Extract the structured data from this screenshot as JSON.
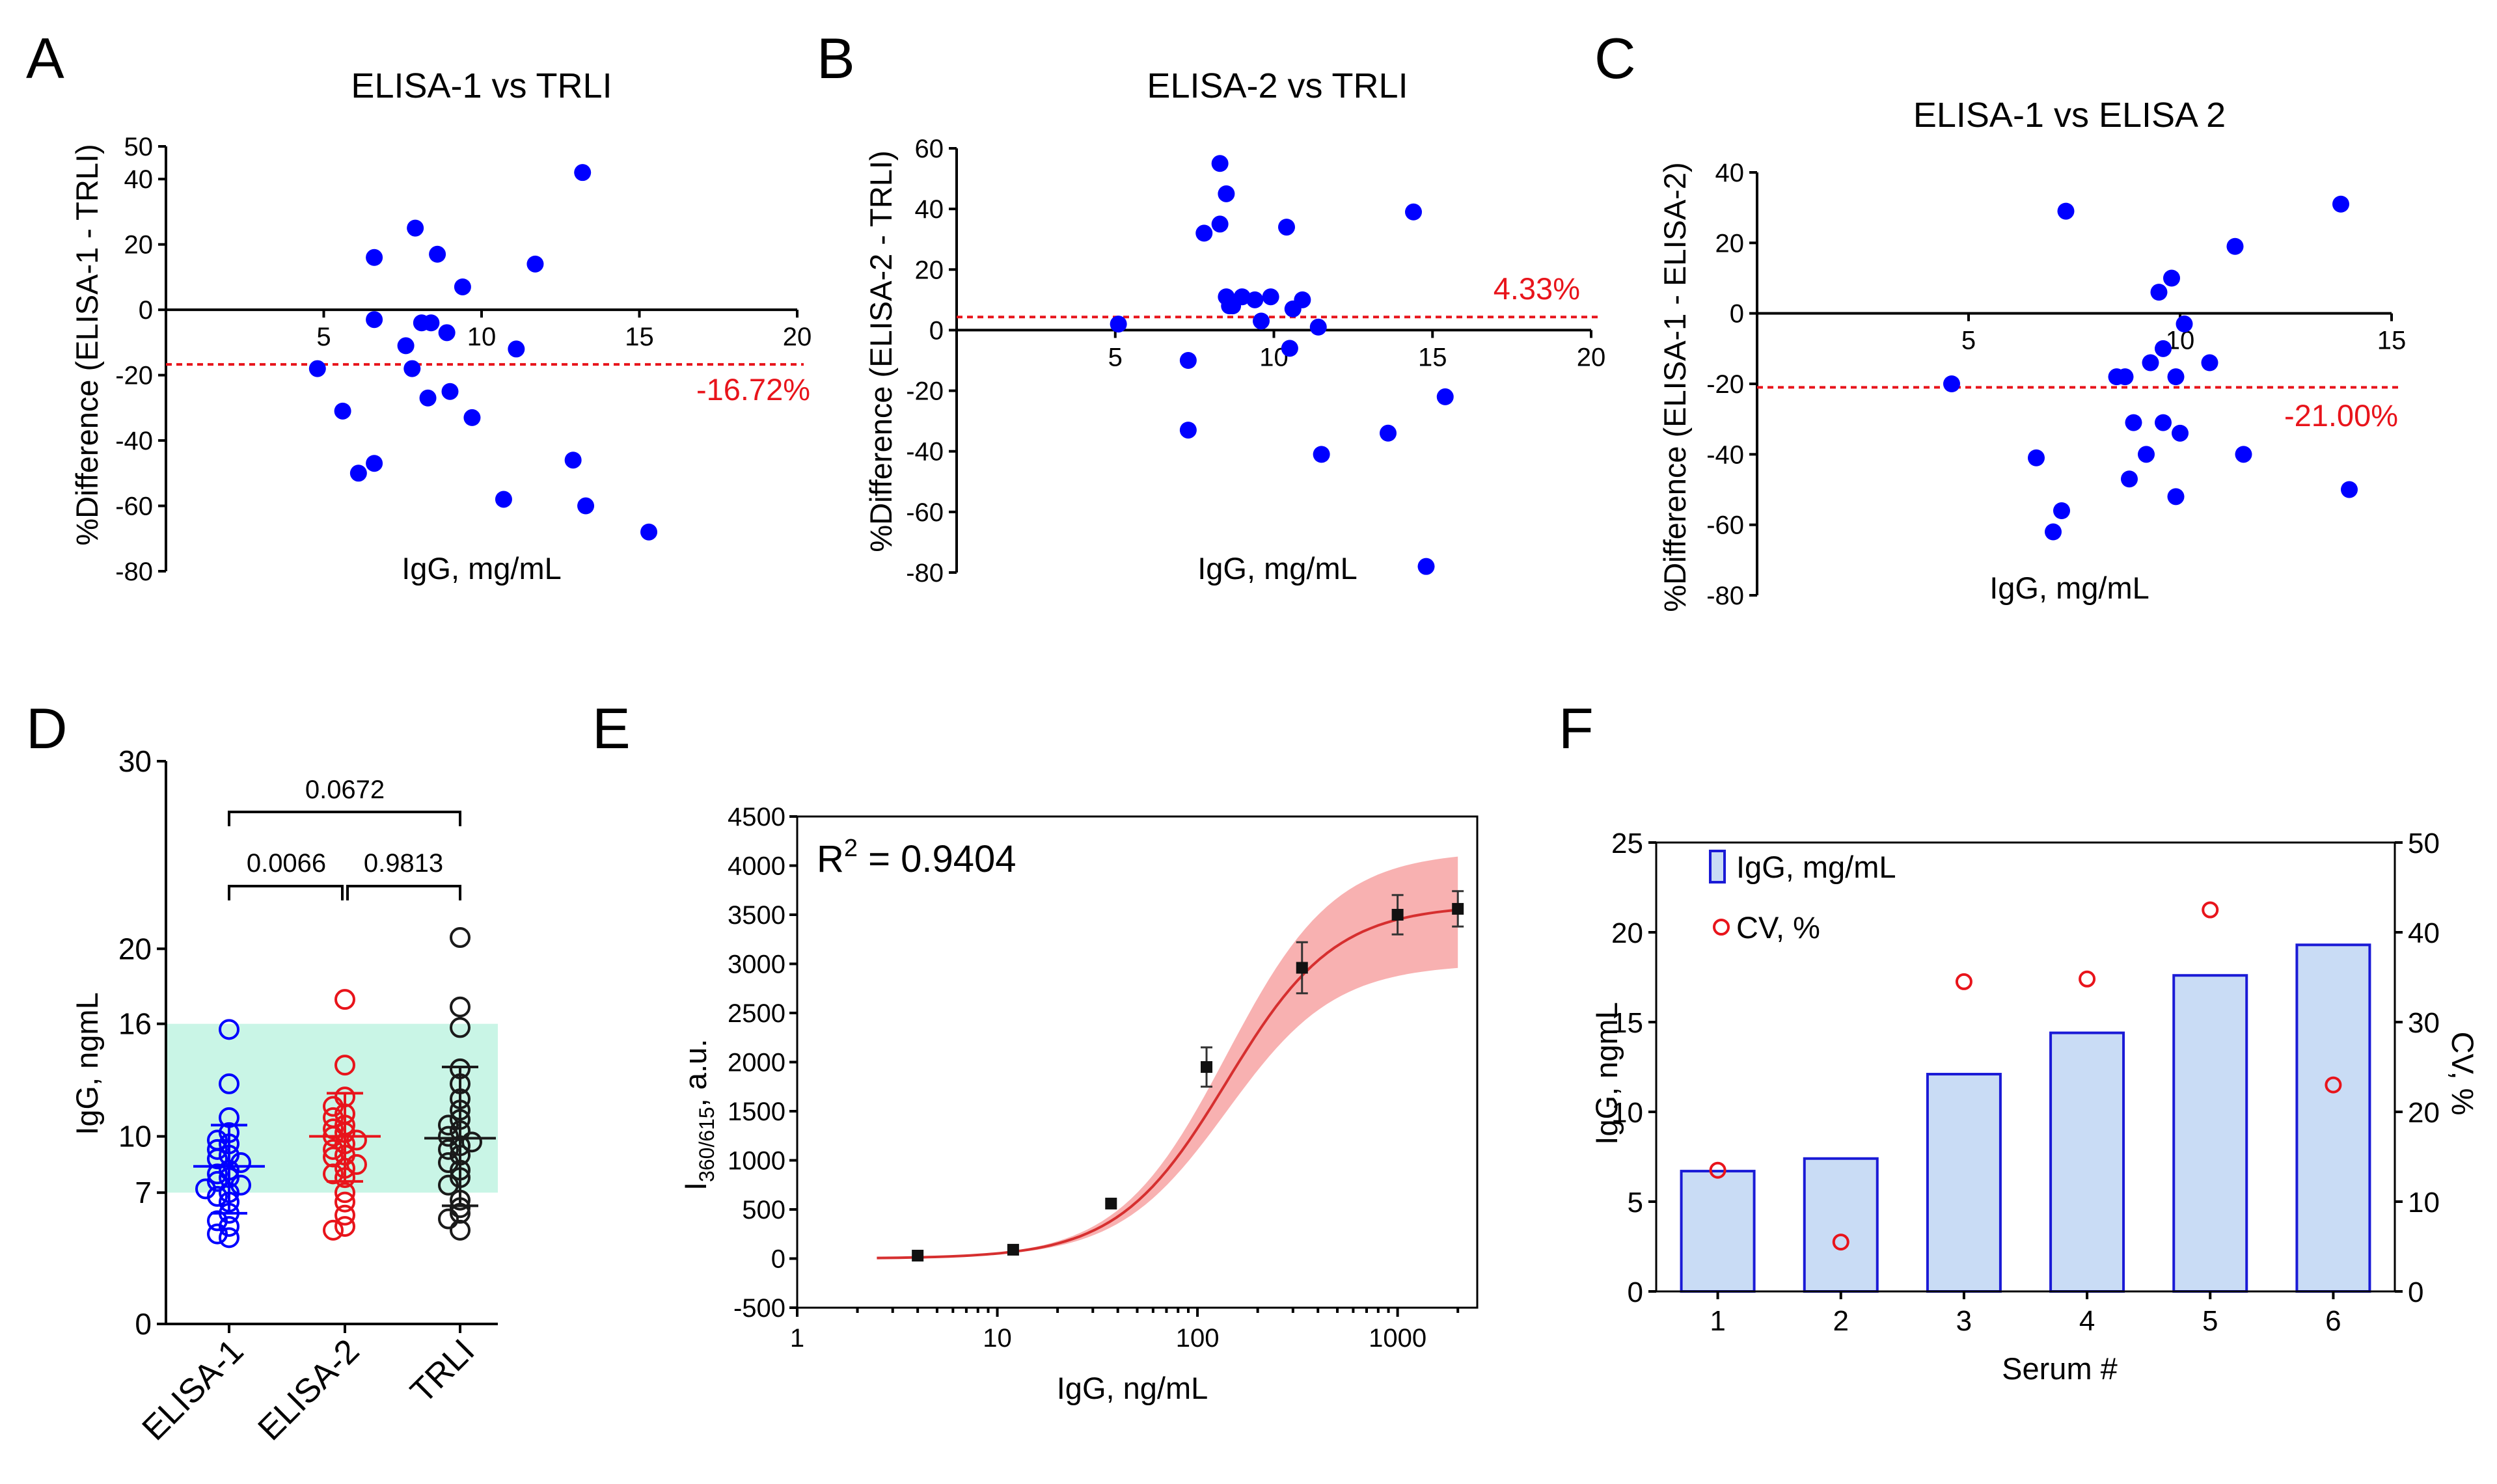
{
  "panels": {
    "A": {
      "letter": "A",
      "title": "ELISA-1 vs TRLI",
      "xlabel": "IgG, mg/mL",
      "ylabel": "%Difference (ELISA-1 - TRLI)",
      "bias_label": "-16.72%"
    },
    "B": {
      "letter": "B",
      "title": "ELISA-2 vs TRLI",
      "xlabel": "IgG, mg/mL",
      "ylabel": "%Difference (ELISA-2 - TRLI)",
      "bias_label": "4.33%"
    },
    "C": {
      "letter": "C",
      "title": "ELISA-1 vs ELISA 2",
      "xlabel": "IgG, mg/mL",
      "ylabel": "%Difference (ELISA-1 - ELISA-2)",
      "bias_label": "-21.00%"
    },
    "D": {
      "letter": "D",
      "ylabel": "IgG, ngmL",
      "p_12": "0.0066",
      "p_23": "0.9813",
      "p_13": "0.0672"
    },
    "E": {
      "letter": "E",
      "r2_prefix": "R",
      "r2_sup": "2",
      "r2_value": " = 0.9404",
      "ylabel_main": "I",
      "ylabel_sub": "360/615",
      "ylabel_tail": ", a.u.",
      "xlabel": "IgG, ng/mL"
    },
    "F": {
      "letter": "F",
      "ylabel_left": "IgG, ngmL",
      "ylabel_right": "CV, %",
      "xlabel": "Serum #",
      "legend_bar": "IgG, mg/mL",
      "legend_circle": "CV, %"
    }
  },
  "colors": {
    "blue": "#0000ff",
    "red": "#e8141b",
    "green_band": "#c9f5e6",
    "bar_fill": "#c9dcf5",
    "bar_edge": "#1a1ad6",
    "band_fill": "#f7a3a3"
  },
  "chart_data": [
    {
      "panel": "A",
      "type": "scatter",
      "title": "ELISA-1 vs TRLI",
      "xlabel": "IgG, mg/mL",
      "ylabel": "%Difference (ELISA-1 - TRLI)",
      "xlim": [
        0,
        20
      ],
      "ylim": [
        -80,
        50
      ],
      "xticks": [
        5,
        10,
        15,
        20
      ],
      "yticks": [
        50,
        40,
        20,
        0,
        -20,
        -40,
        -60,
        -80
      ],
      "bias": -16.72,
      "points": [
        [
          4.8,
          -18
        ],
        [
          5.6,
          -31
        ],
        [
          6.1,
          -50
        ],
        [
          6.6,
          16
        ],
        [
          6.6,
          -3
        ],
        [
          6.6,
          -47
        ],
        [
          7.9,
          25
        ],
        [
          7.6,
          -11
        ],
        [
          7.8,
          -18
        ],
        [
          8.1,
          -4
        ],
        [
          8.4,
          -4
        ],
        [
          8.3,
          -27
        ],
        [
          8.6,
          17
        ],
        [
          8.9,
          -7
        ],
        [
          9.0,
          -25
        ],
        [
          9.4,
          7
        ],
        [
          9.7,
          -33
        ],
        [
          10.7,
          -58
        ],
        [
          11.1,
          -12
        ],
        [
          11.7,
          14
        ],
        [
          12.9,
          -46
        ],
        [
          13.2,
          42
        ],
        [
          13.3,
          -60
        ],
        [
          15.3,
          -68
        ]
      ]
    },
    {
      "panel": "B",
      "type": "scatter",
      "title": "ELISA-2 vs TRLI",
      "xlabel": "IgG, mg/mL",
      "ylabel": "%Difference (ELISA-2 - TRLI)",
      "xlim": [
        0,
        20
      ],
      "ylim": [
        -80,
        60
      ],
      "xticks": [
        5,
        10,
        15,
        20
      ],
      "yticks": [
        60,
        40,
        20,
        0,
        -20,
        -40,
        -60,
        -80
      ],
      "bias": 4.33,
      "points": [
        [
          5.1,
          2
        ],
        [
          7.3,
          -10
        ],
        [
          7.3,
          -33
        ],
        [
          7.8,
          32
        ],
        [
          8.3,
          55
        ],
        [
          8.3,
          35
        ],
        [
          8.5,
          45
        ],
        [
          8.5,
          11
        ],
        [
          8.6,
          8
        ],
        [
          8.7,
          8
        ],
        [
          9.0,
          11
        ],
        [
          9.4,
          10
        ],
        [
          9.6,
          3
        ],
        [
          9.9,
          11
        ],
        [
          10.4,
          34
        ],
        [
          10.5,
          -6
        ],
        [
          10.6,
          7
        ],
        [
          10.9,
          10
        ],
        [
          11.4,
          1
        ],
        [
          11.5,
          -41
        ],
        [
          13.6,
          -34
        ],
        [
          14.4,
          39
        ],
        [
          14.8,
          -78
        ],
        [
          15.4,
          -22
        ]
      ]
    },
    {
      "panel": "C",
      "type": "scatter",
      "title": "ELISA-1 vs ELISA 2",
      "xlabel": "IgG, mg/mL",
      "ylabel": "%Difference (ELISA-1 - ELISA-2)",
      "xlim": [
        0,
        15
      ],
      "ylim": [
        -80,
        40
      ],
      "xticks": [
        5,
        10,
        15
      ],
      "yticks": [
        40,
        20,
        0,
        -20,
        -40,
        -60,
        -80
      ],
      "bias": -21.0,
      "points": [
        [
          4.6,
          -20
        ],
        [
          6.6,
          -41
        ],
        [
          7.0,
          -62
        ],
        [
          7.2,
          -56
        ],
        [
          7.3,
          29
        ],
        [
          8.5,
          -18
        ],
        [
          8.7,
          -18
        ],
        [
          8.8,
          -47
        ],
        [
          8.9,
          -31
        ],
        [
          9.2,
          -40
        ],
        [
          9.3,
          -14
        ],
        [
          9.5,
          6
        ],
        [
          9.6,
          -31
        ],
        [
          9.6,
          -10
        ],
        [
          9.8,
          10
        ],
        [
          9.9,
          -18
        ],
        [
          9.9,
          -52
        ],
        [
          10.0,
          -34
        ],
        [
          10.1,
          -3
        ],
        [
          10.7,
          -14
        ],
        [
          11.3,
          19
        ],
        [
          11.5,
          -40
        ],
        [
          13.8,
          31
        ],
        [
          14.0,
          -50
        ]
      ]
    },
    {
      "panel": "D",
      "type": "scatter",
      "ylabel": "IgG, ngmL",
      "categories": [
        "ELISA-1",
        "ELISA-2",
        "TRLI"
      ],
      "ylim": [
        0,
        30
      ],
      "yticks": [
        0,
        7,
        10,
        16,
        20,
        30
      ],
      "reference_band": [
        7,
        16
      ],
      "series": [
        {
          "name": "ELISA-1",
          "mean": 8.4,
          "sd_low": 5.9,
          "sd_high": 10.6,
          "values": [
            15.7,
            12.8,
            11.0,
            10.2,
            9.8,
            9.6,
            9.3,
            9.0,
            8.8,
            8.6,
            8.2,
            8.0,
            7.8,
            7.6,
            7.4,
            7.2,
            7.0,
            6.8,
            6.5,
            5.9,
            5.5,
            5.2,
            4.8,
            4.6
          ]
        },
        {
          "name": "ELISA-2",
          "mean": 10.0,
          "sd_low": 7.6,
          "sd_high": 12.3,
          "values": [
            17.3,
            13.8,
            12.1,
            11.6,
            11.2,
            11.0,
            10.6,
            10.4,
            10.2,
            10.0,
            9.8,
            9.6,
            9.3,
            9.0,
            8.9,
            8.5,
            8.3,
            8.0,
            7.8,
            7.0,
            6.5,
            5.8,
            5.2,
            5.0
          ]
        },
        {
          "name": "TRLI",
          "mean": 9.9,
          "sd_low": 6.3,
          "sd_high": 13.7,
          "values": [
            20.6,
            16.9,
            15.8,
            13.6,
            12.8,
            12.0,
            11.4,
            10.9,
            10.6,
            10.3,
            10.0,
            9.7,
            9.5,
            9.3,
            9.0,
            8.6,
            8.2,
            7.8,
            7.4,
            6.6,
            6.2,
            5.9,
            5.6,
            5.0
          ]
        }
      ],
      "comparisons": [
        {
          "pair": [
            "ELISA-1",
            "ELISA-2"
          ],
          "p": "0.0066"
        },
        {
          "pair": [
            "ELISA-2",
            "TRLI"
          ],
          "p": "0.9813"
        },
        {
          "pair": [
            "ELISA-1",
            "TRLI"
          ],
          "p": "0.0672"
        }
      ]
    },
    {
      "panel": "E",
      "type": "line",
      "xscale": "log",
      "xlabel": "IgG, ng/mL",
      "ylabel": "I360/615, a.u.",
      "xlim": [
        1,
        2500
      ],
      "ylim": [
        -500,
        4500
      ],
      "xticks": [
        1,
        10,
        100,
        1000
      ],
      "yticks": [
        -500,
        0,
        500,
        1000,
        1500,
        2000,
        2500,
        3000,
        3500,
        4000,
        4500
      ],
      "r2": 0.9404,
      "points": [
        {
          "x": 4,
          "y": 30,
          "err": 0
        },
        {
          "x": 12,
          "y": 90,
          "err": 0
        },
        {
          "x": 37,
          "y": 560,
          "err": 0
        },
        {
          "x": 111,
          "y": 1950,
          "err": 200
        },
        {
          "x": 333,
          "y": 2960,
          "err": 260
        },
        {
          "x": 1000,
          "y": 3500,
          "err": 200
        },
        {
          "x": 2000,
          "y": 3560,
          "err": 180
        }
      ],
      "fit": {
        "model": "4PL",
        "bottom": 0,
        "top": 3600,
        "ec50": 140,
        "hill": 1.6,
        "band_low_top": 3000,
        "band_high_top": 4150
      }
    },
    {
      "panel": "F",
      "type": "bar",
      "xlabel": "Serum #",
      "ylabel": "IgG, ngmL",
      "ylabel_right": "CV, %",
      "categories": [
        "1",
        "2",
        "3",
        "4",
        "5",
        "6"
      ],
      "ylim": [
        0,
        25
      ],
      "yticks": [
        0,
        5,
        10,
        15,
        20,
        25
      ],
      "ylim_right": [
        0,
        50
      ],
      "yticks_right": [
        0,
        10,
        20,
        30,
        40,
        50
      ],
      "series": [
        {
          "name": "IgG, mg/mL",
          "type": "bar",
          "axis": "left",
          "values": [
            6.7,
            7.4,
            12.1,
            14.4,
            17.6,
            19.3
          ]
        },
        {
          "name": "CV, %",
          "type": "scatter",
          "axis": "right",
          "values": [
            13.5,
            5.5,
            34.5,
            34.8,
            42.5,
            23.0
          ]
        }
      ]
    }
  ]
}
